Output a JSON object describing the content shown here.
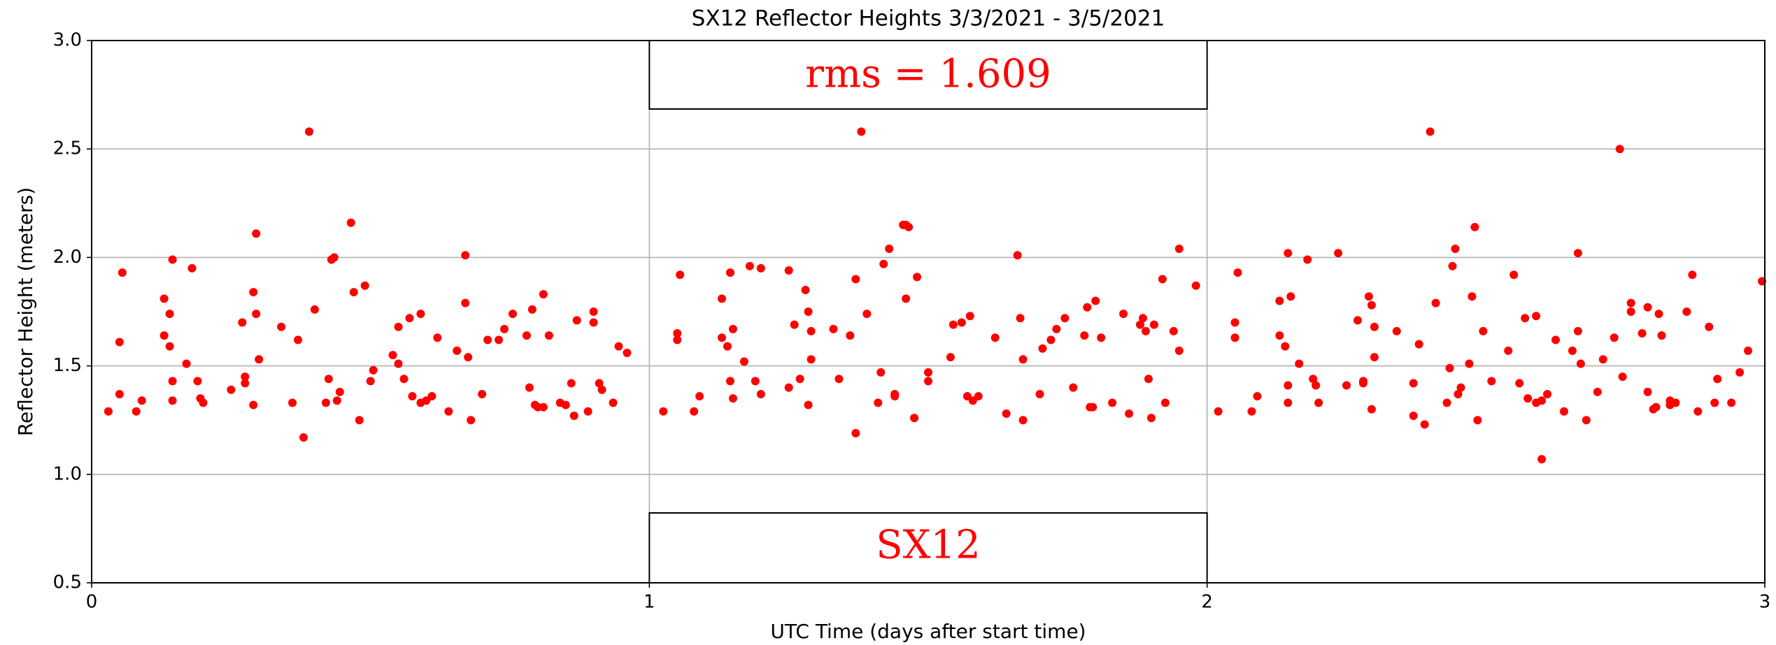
{
  "chart_data": {
    "type": "scatter",
    "title": "SX12 Reflector Heights 3/3/2021 - 3/5/2021",
    "xlabel": "UTC Time (days after start time)",
    "ylabel": "Reflector Height (meters)",
    "annotations": [
      {
        "text": "rms = 1.609"
      },
      {
        "text": "SX12"
      }
    ],
    "color": "#ff0000",
    "grid": true,
    "xlim": [
      0,
      3
    ],
    "xticks": [
      0,
      1,
      2,
      3
    ],
    "ylim": [
      0.5,
      3.0
    ],
    "yticks": [
      0.5,
      {
        "value": 1,
        "label": "1.0"
      },
      1.5,
      {
        "value": 2,
        "label": "2.0"
      },
      2.5,
      {
        "value": 3,
        "label": "3.0"
      }
    ],
    "x": [
      0.03,
      0.05,
      0.05,
      0.055,
      0.08,
      0.09,
      0.13,
      0.13,
      0.14,
      0.145,
      0.14,
      0.145,
      0.145,
      0.17,
      0.18,
      0.19,
      0.195,
      0.2,
      0.25,
      0.27,
      0.275,
      0.275,
      0.29,
      0.29,
      0.295,
      0.295,
      0.3,
      0.34,
      0.36,
      0.37,
      0.38,
      0.39,
      0.4,
      0.42,
      0.425,
      0.43,
      0.435,
      0.44,
      0.445,
      0.465,
      0.47,
      0.48,
      0.49,
      0.5,
      0.505,
      0.54,
      0.55,
      0.55,
      0.56,
      0.57,
      0.575,
      0.59,
      0.59,
      0.6,
      0.61,
      0.62,
      0.64,
      0.655,
      0.67,
      0.67,
      0.675,
      0.68,
      0.7,
      0.71,
      0.73,
      0.74,
      0.755,
      0.78,
      0.785,
      0.79,
      0.795,
      0.8,
      0.81,
      0.81,
      0.82,
      0.84,
      0.85,
      0.86,
      0.865,
      0.87,
      0.89,
      0.9,
      0.9,
      0.91,
      0.915,
      0.935,
      0.945,
      0.96,
      1.025,
      1.05,
      1.05,
      1.055,
      1.08,
      1.09,
      1.13,
      1.13,
      1.14,
      1.145,
      1.145,
      1.15,
      1.15,
      1.17,
      1.18,
      1.19,
      1.2,
      1.2,
      1.25,
      1.25,
      1.26,
      1.27,
      1.28,
      1.285,
      1.285,
      1.29,
      1.29,
      1.33,
      1.34,
      1.36,
      1.37,
      1.37,
      1.38,
      1.39,
      1.41,
      1.415,
      1.42,
      1.43,
      1.44,
      1.44,
      1.455,
      1.46,
      1.46,
      1.465,
      1.475,
      1.48,
      1.5,
      1.5,
      1.54,
      1.545,
      1.56,
      1.57,
      1.575,
      1.58,
      1.59,
      1.62,
      1.64,
      1.66,
      1.665,
      1.67,
      1.67,
      1.7,
      1.705,
      1.72,
      1.73,
      1.745,
      1.76,
      1.78,
      1.785,
      1.79,
      1.795,
      1.8,
      1.81,
      1.83,
      1.85,
      1.86,
      1.88,
      1.885,
      1.89,
      1.895,
      1.9,
      1.905,
      1.92,
      1.925,
      1.94,
      1.95,
      1.95,
      1.98,
      2.02,
      2.05,
      2.05,
      2.055,
      2.08,
      2.09,
      2.13,
      2.13,
      2.14,
      2.145,
      2.15,
      2.145,
      2.145,
      2.165,
      2.18,
      2.19,
      2.195,
      2.2,
      2.235,
      2.25,
      2.27,
      2.28,
      2.28,
      2.29,
      2.295,
      2.295,
      2.3,
      2.3,
      2.34,
      2.37,
      2.37,
      2.38,
      2.39,
      2.4,
      2.41,
      2.43,
      2.435,
      2.44,
      2.445,
      2.45,
      2.455,
      2.47,
      2.475,
      2.48,
      2.485,
      2.495,
      2.51,
      2.54,
      2.55,
      2.56,
      2.57,
      2.575,
      2.59,
      2.59,
      2.6,
      2.6,
      2.61,
      2.625,
      2.64,
      2.655,
      2.665,
      2.665,
      2.67,
      2.68,
      2.7,
      2.71,
      2.73,
      2.74,
      2.745,
      2.76,
      2.76,
      2.78,
      2.79,
      2.79,
      2.8,
      2.805,
      2.81,
      2.815,
      2.83,
      2.83,
      2.84,
      2.86,
      2.87,
      2.88,
      2.9,
      2.91,
      2.915,
      2.94,
      2.955,
      2.97,
      2.995
    ],
    "values": [
      1.29,
      1.61,
      1.37,
      1.93,
      1.29,
      1.34,
      1.81,
      1.64,
      1.74,
      1.99,
      1.59,
      1.43,
      1.34,
      1.51,
      1.95,
      1.43,
      1.35,
      1.33,
      1.39,
      1.7,
      1.45,
      1.42,
      1.84,
      1.32,
      1.74,
      2.11,
      1.53,
      1.68,
      1.33,
      1.62,
      1.17,
      2.58,
      1.76,
      1.33,
      1.44,
      1.99,
      2.0,
      1.34,
      1.38,
      2.16,
      1.84,
      1.25,
      1.87,
      1.43,
      1.48,
      1.55,
      1.51,
      1.68,
      1.44,
      1.72,
      1.36,
      1.74,
      1.33,
      1.34,
      1.36,
      1.63,
      1.29,
      1.57,
      2.01,
      1.79,
      1.54,
      1.25,
      1.37,
      1.62,
      1.62,
      1.67,
      1.74,
      1.64,
      1.4,
      1.76,
      1.32,
      1.31,
      1.83,
      1.31,
      1.64,
      1.33,
      1.32,
      1.42,
      1.27,
      1.71,
      1.29,
      1.75,
      1.7,
      1.42,
      1.39,
      1.33,
      1.59,
      1.56,
      1.29,
      1.62,
      1.65,
      1.92,
      1.29,
      1.36,
      1.81,
      1.63,
      1.59,
      1.93,
      1.43,
      1.35,
      1.67,
      1.52,
      1.96,
      1.43,
      1.95,
      1.37,
      1.4,
      1.94,
      1.69,
      1.44,
      1.85,
      1.32,
      1.75,
      1.66,
      1.53,
      1.67,
      1.44,
      1.64,
      1.19,
      1.9,
      2.58,
      1.74,
      1.33,
      1.47,
      1.97,
      2.04,
      1.36,
      1.37,
      2.15,
      2.15,
      1.81,
      2.14,
      1.26,
      1.91,
      1.43,
      1.47,
      1.54,
      1.69,
      1.7,
      1.36,
      1.73,
      1.34,
      1.36,
      1.63,
      1.28,
      2.01,
      1.72,
      1.53,
      1.25,
      1.37,
      1.58,
      1.62,
      1.67,
      1.72,
      1.4,
      1.64,
      1.77,
      1.31,
      1.31,
      1.8,
      1.63,
      1.33,
      1.74,
      1.28,
      1.69,
      1.72,
      1.66,
      1.44,
      1.26,
      1.69,
      1.9,
      1.33,
      1.66,
      2.04,
      1.57,
      1.87,
      1.29,
      1.63,
      1.7,
      1.93,
      1.29,
      1.36,
      1.8,
      1.64,
      1.59,
      2.02,
      1.82,
      1.41,
      1.33,
      1.51,
      1.99,
      1.44,
      1.41,
      1.33,
      2.02,
      1.41,
      1.71,
      1.43,
      1.42,
      1.82,
      1.3,
      1.78,
      1.54,
      1.68,
      1.66,
      1.27,
      1.42,
      1.6,
      1.23,
      2.58,
      1.79,
      1.33,
      1.49,
      1.96,
      2.04,
      1.37,
      1.4,
      1.51,
      1.82,
      2.14,
      1.25,
      1.66,
      1.43,
      1.57,
      1.92,
      1.42,
      1.72,
      1.35,
      1.73,
      1.33,
      1.07,
      1.34,
      1.37,
      1.62,
      1.29,
      1.57,
      2.02,
      1.66,
      1.51,
      1.25,
      1.38,
      1.53,
      1.63,
      2.5,
      1.45,
      1.79,
      1.75,
      1.65,
      1.77,
      1.38,
      1.3,
      1.31,
      1.74,
      1.64,
      1.32,
      1.34,
      1.33,
      1.75,
      1.92,
      1.29,
      1.68,
      1.33,
      1.44,
      1.33,
      1.47,
      1.57,
      1.89
    ]
  }
}
